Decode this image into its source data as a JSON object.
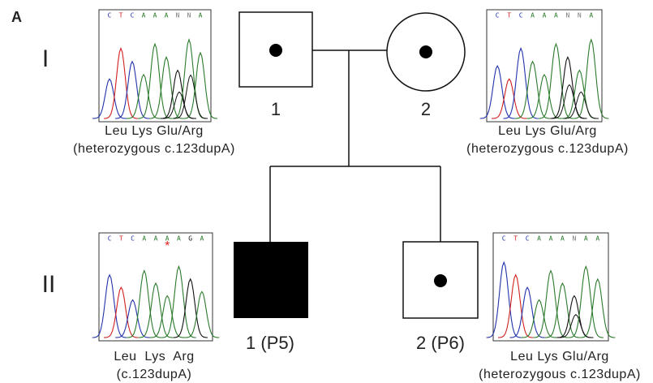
{
  "panel_label": "A",
  "generations": [
    {
      "label": "I"
    },
    {
      "label": "II"
    }
  ],
  "individuals": [
    {
      "label": "1"
    },
    {
      "label": "2"
    },
    {
      "label": "1 (P5)"
    },
    {
      "label": "2 (P6)"
    }
  ],
  "chromatograms": [
    {
      "bases": [
        "C",
        "T",
        "C",
        "A",
        "A",
        "A",
        "N",
        "N",
        "A"
      ],
      "amino_acids": "Leu Lys Glu/Arg",
      "genotype": "(heterozygous c.123dupA)"
    },
    {
      "bases": [
        "C",
        "T",
        "C",
        "A",
        "A",
        "A",
        "N",
        "N",
        "A"
      ],
      "amino_acids": "Leu Lys Glu/Arg",
      "genotype": "(heterozygous c.123dupA)"
    },
    {
      "bases": [
        "C",
        "T",
        "C",
        "A",
        "A",
        "A",
        "A",
        "G",
        "A"
      ],
      "marker": "*",
      "amino_acids": "Leu  Lys  Arg",
      "genotype": "(c.123dupA)"
    },
    {
      "bases": [
        "C",
        "T",
        "C",
        "A",
        "A",
        "A",
        "N",
        "A",
        "A"
      ],
      "amino_acids": "Leu Lys Glu/Arg",
      "genotype": "(heterozygous c.123dupA)"
    }
  ]
}
